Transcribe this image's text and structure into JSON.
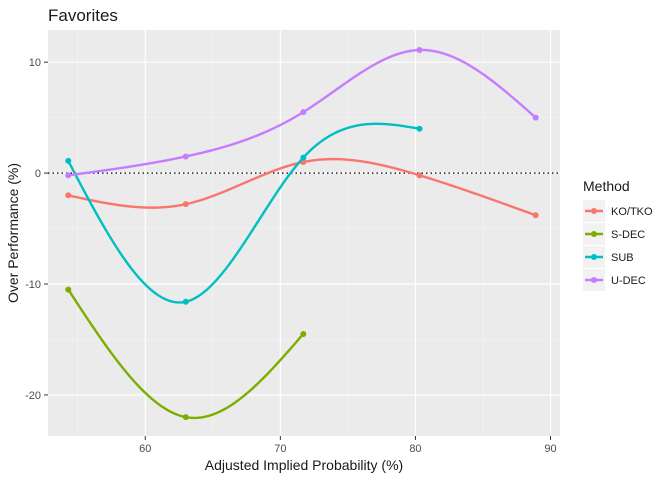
{
  "chart_data": {
    "type": "line",
    "title": "Favorites",
    "xlabel": "Adjusted Implied Probability (%)",
    "ylabel": "Over Performance (%)",
    "xlim": [
      52.8,
      90.7
    ],
    "ylim": [
      -23.7,
      12.9
    ],
    "x_ticks": [
      60,
      70,
      80,
      90
    ],
    "y_ticks": [
      -20,
      -10,
      0,
      10
    ],
    "x_tick_labels": [
      "60",
      "70",
      "80",
      "90"
    ],
    "y_tick_labels": [
      "-20",
      "-10",
      "0",
      "10"
    ],
    "reference_line": {
      "y": 0,
      "style": "dotted"
    },
    "grid": true,
    "legend": {
      "title": "Method",
      "position": "right"
    },
    "series": [
      {
        "name": "KO/TKO",
        "color": "#F8766D",
        "x": [
          54.3,
          63.0,
          71.7,
          80.3,
          88.9
        ],
        "y": [
          -2.0,
          -2.8,
          1.0,
          -0.2,
          -3.8
        ]
      },
      {
        "name": "S-DEC",
        "color": "#7CAE00",
        "x": [
          54.3,
          63.0,
          71.7
        ],
        "y": [
          -10.5,
          -22.0,
          -14.5
        ]
      },
      {
        "name": "SUB",
        "color": "#00BFC4",
        "x": [
          54.3,
          63.0,
          71.7,
          80.3
        ],
        "y": [
          1.1,
          -11.6,
          1.4,
          4.0
        ]
      },
      {
        "name": "U-DEC",
        "color": "#C77CFF",
        "x": [
          54.3,
          63.0,
          71.7,
          80.3,
          88.9
        ],
        "y": [
          -0.2,
          1.5,
          5.5,
          11.1,
          5.0
        ]
      }
    ]
  }
}
